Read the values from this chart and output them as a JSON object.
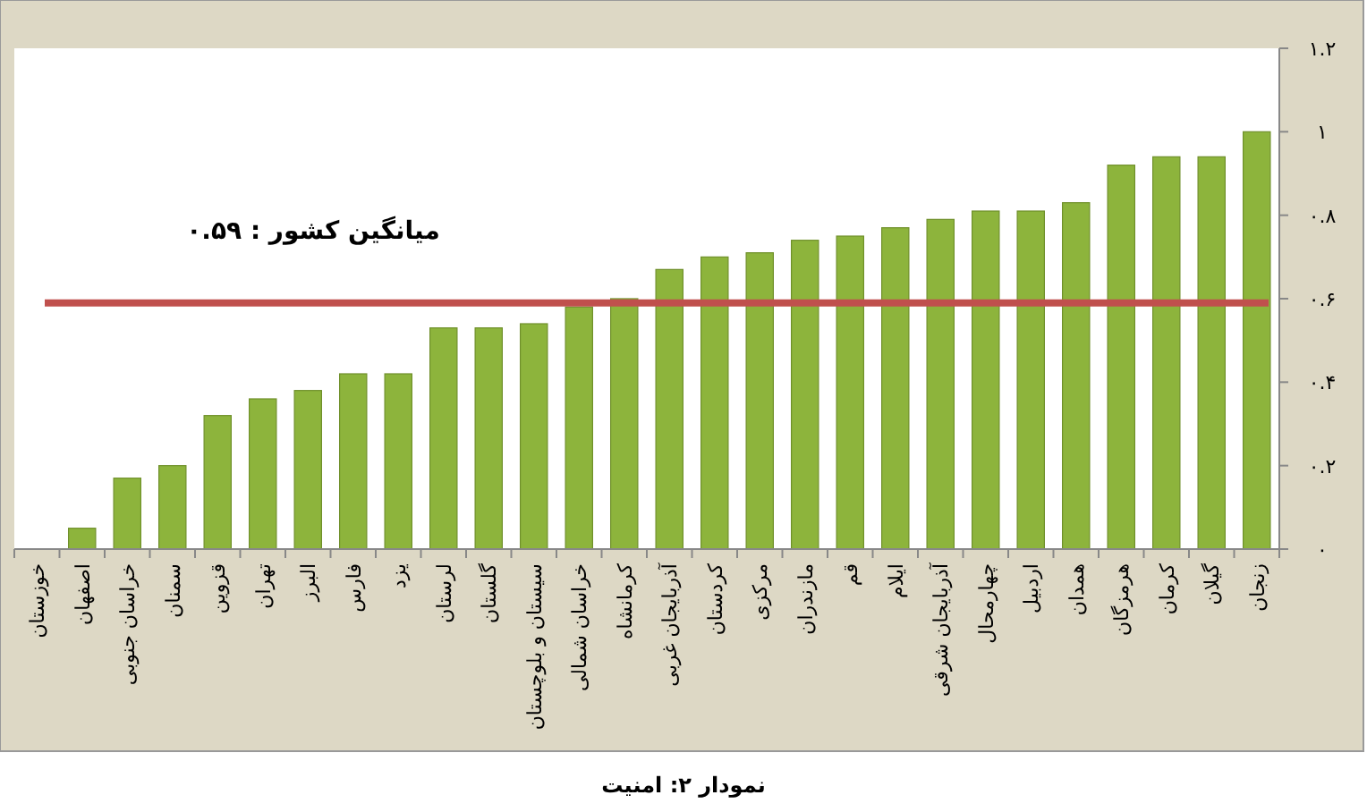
{
  "chart_data": {
    "type": "bar",
    "title": "نمودار ۲: امنیت",
    "categories": [
      "خوزستان",
      "اصفهان",
      "خراسان جنوبی",
      "سمنان",
      "قزوین",
      "تهران",
      "البرز",
      "فارس",
      "یزد",
      "لرستان",
      "گلستان",
      "سیستان و بلوچستان",
      "خراسان شمالی",
      "کرمانشاه",
      "آذربایجان غربی",
      "کردستان",
      "مرکزی",
      "مازندران",
      "قم",
      "ایلام",
      "آذربایجان شرقی",
      "چهارمحال",
      "اردبیل",
      "همدان",
      "هرمزگان",
      "کرمان",
      "گیلان",
      "زنجان"
    ],
    "values": [
      0,
      0.05,
      0.17,
      0.2,
      0.32,
      0.36,
      0.38,
      0.42,
      0.42,
      0.53,
      0.53,
      0.54,
      0.58,
      0.6,
      0.67,
      0.7,
      0.71,
      0.74,
      0.75,
      0.77,
      0.79,
      0.81,
      0.81,
      0.83,
      0.92,
      0.94,
      0.94,
      1.0
    ],
    "color": "#8db43c",
    "ylim": [
      0,
      1.2
    ],
    "yticks": [
      {
        "value": 0,
        "label": "۰"
      },
      {
        "value": 0.2,
        "label": "۰.۲"
      },
      {
        "value": 0.4,
        "label": "۰.۴"
      },
      {
        "value": 0.6,
        "label": "۰.۶"
      },
      {
        "value": 0.8,
        "label": "۰.۸"
      },
      {
        "value": 1,
        "label": "۱"
      },
      {
        "value": 1.2,
        "label": "۱.۲"
      }
    ],
    "ref_lines": [
      {
        "axis": "y",
        "value": 0.59,
        "label": "میانگین کشور : ۰.۵۹",
        "color": "#c0504d"
      }
    ],
    "grid": false
  }
}
